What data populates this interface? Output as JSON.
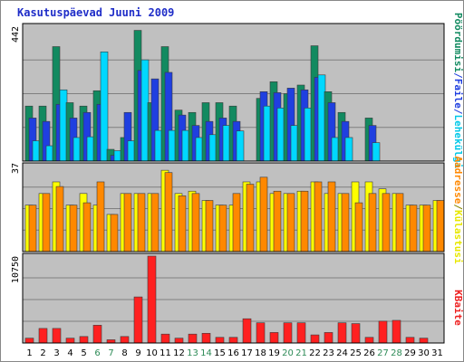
{
  "chart_data": [
    {
      "type": "bar",
      "title": "Kasutuspäevad Juuni 2009",
      "categories": [
        "1",
        "2",
        "3",
        "4",
        "5",
        "6",
        "7",
        "8",
        "9",
        "10",
        "11",
        "12",
        "13",
        "14",
        "15",
        "16",
        "17",
        "18",
        "19",
        "20",
        "21",
        "22",
        "23",
        "24",
        "25",
        "26",
        "27",
        "28",
        "29",
        "30",
        "31"
      ],
      "weekend_categories": [
        "6",
        "7",
        "13",
        "14",
        "20",
        "21",
        "27",
        "28"
      ],
      "scale": "log",
      "ymax_label": "442",
      "ylim": [
        1,
        442
      ],
      "series": [
        {
          "name": "Pöördumisi",
          "color": "#128a60",
          "values": [
            12,
            12,
            176,
            14,
            12,
            24,
            1.7,
            2.9,
            367,
            14,
            176,
            10,
            9,
            14,
            14,
            12,
            0,
            17,
            36,
            21,
            31,
            183,
            23,
            9,
            0,
            7,
            1,
            1,
            1,
            1,
            1
          ]
        },
        {
          "name": "Faile",
          "color": "#1f3fe0",
          "values": [
            7,
            6,
            13,
            7,
            9,
            13,
            1.3,
            9,
            60,
            41,
            55,
            8,
            5,
            6,
            7,
            6,
            0,
            23,
            22,
            27,
            25,
            44,
            14,
            6,
            0,
            5,
            1,
            1,
            1,
            1,
            1
          ]
        },
        {
          "name": "Lehekülgi",
          "color": "#00d8ff",
          "values": [
            2.5,
            2,
            25,
            2.9,
            3,
            139,
            1.6,
            2.5,
            97,
            4,
            4,
            4,
            2.9,
            3.3,
            5,
            3.9,
            0,
            12,
            11,
            5,
            11,
            49,
            2.9,
            2.9,
            0,
            2.3,
            1,
            1,
            1,
            1,
            1
          ]
        }
      ]
    },
    {
      "type": "bar",
      "ymax_label": "37",
      "ylim": [
        0,
        37
      ],
      "series": [
        {
          "name": "Külastusi",
          "color": "#ffff00",
          "values": [
            20,
            25,
            30,
            20,
            25,
            20,
            16,
            25,
            25,
            25,
            35,
            25,
            26,
            22,
            20,
            20,
            30,
            30,
            25,
            25,
            26,
            30,
            25,
            25,
            30,
            30,
            27,
            25,
            20,
            20,
            22
          ]
        },
        {
          "name": "Aadresse",
          "color": "#ff8800",
          "values": [
            20,
            25,
            28,
            20,
            21,
            30,
            16,
            25,
            25,
            25,
            34,
            24,
            25,
            22,
            20,
            25,
            29,
            32,
            26,
            25,
            26,
            30,
            30,
            25,
            21,
            25,
            25,
            25,
            20,
            20,
            22
          ]
        }
      ]
    },
    {
      "type": "bar",
      "ymax_label": "10750",
      "ylim": [
        0,
        10750
      ],
      "series": [
        {
          "name": "KBaite",
          "color": "#ff2020",
          "values": [
            600,
            1800,
            1800,
            600,
            800,
            2200,
            400,
            800,
            5700,
            10750,
            1100,
            600,
            1100,
            1200,
            700,
            700,
            3000,
            2500,
            1300,
            2500,
            2500,
            1000,
            1300,
            2500,
            2400,
            700,
            2700,
            2800,
            700,
            600,
            0
          ]
        }
      ]
    }
  ],
  "legend": {
    "top_labels": [
      "Pöördumisi",
      "/",
      "Faile",
      "/",
      "Lehekülgi"
    ],
    "middle_labels": [
      "Külastusi",
      "/",
      "Aadresse"
    ],
    "bottom_labels": [
      "KBaite"
    ]
  }
}
